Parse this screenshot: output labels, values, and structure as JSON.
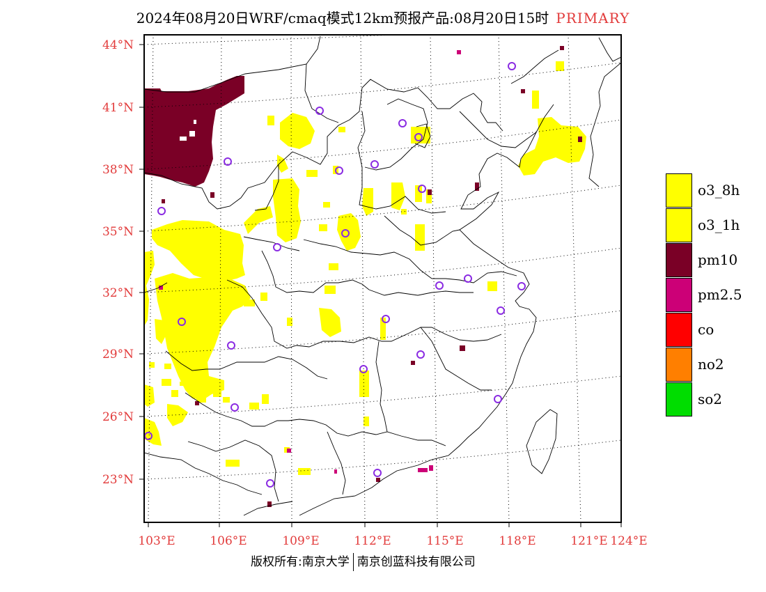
{
  "title": {
    "main": "2024年08月20日WRF/cmaq模式12km预报产品:08月20日15时",
    "tag": "PRIMARY"
  },
  "axes": {
    "lat_labels": [
      "44°N",
      "41°N",
      "38°N",
      "35°N",
      "32°N",
      "29°N",
      "26°N",
      "23°N"
    ],
    "lon_labels": [
      "103°E",
      "106°E",
      "109°E",
      "112°E",
      "115°E",
      "118°E",
      "121°E",
      "124°E"
    ],
    "label_color": "#e23b3b"
  },
  "legend": [
    {
      "label": "o3_8h",
      "color": "#ffff00"
    },
    {
      "label": "o3_1h",
      "color": "#ffff00"
    },
    {
      "label": "pm10",
      "color": "#7a0026"
    },
    {
      "label": "pm2.5",
      "color": "#cc0077"
    },
    {
      "label": "co",
      "color": "#ff0000"
    },
    {
      "label": "no2",
      "color": "#ff7f00"
    },
    {
      "label": "so2",
      "color": "#00dd00"
    }
  ],
  "footer": {
    "left": "版权所有:南京大学",
    "right": "南京创蓝科技有限公司"
  },
  "colors": {
    "o3": "#ffff00",
    "pm10": "#7a0026",
    "station": "#8a2be2"
  }
}
